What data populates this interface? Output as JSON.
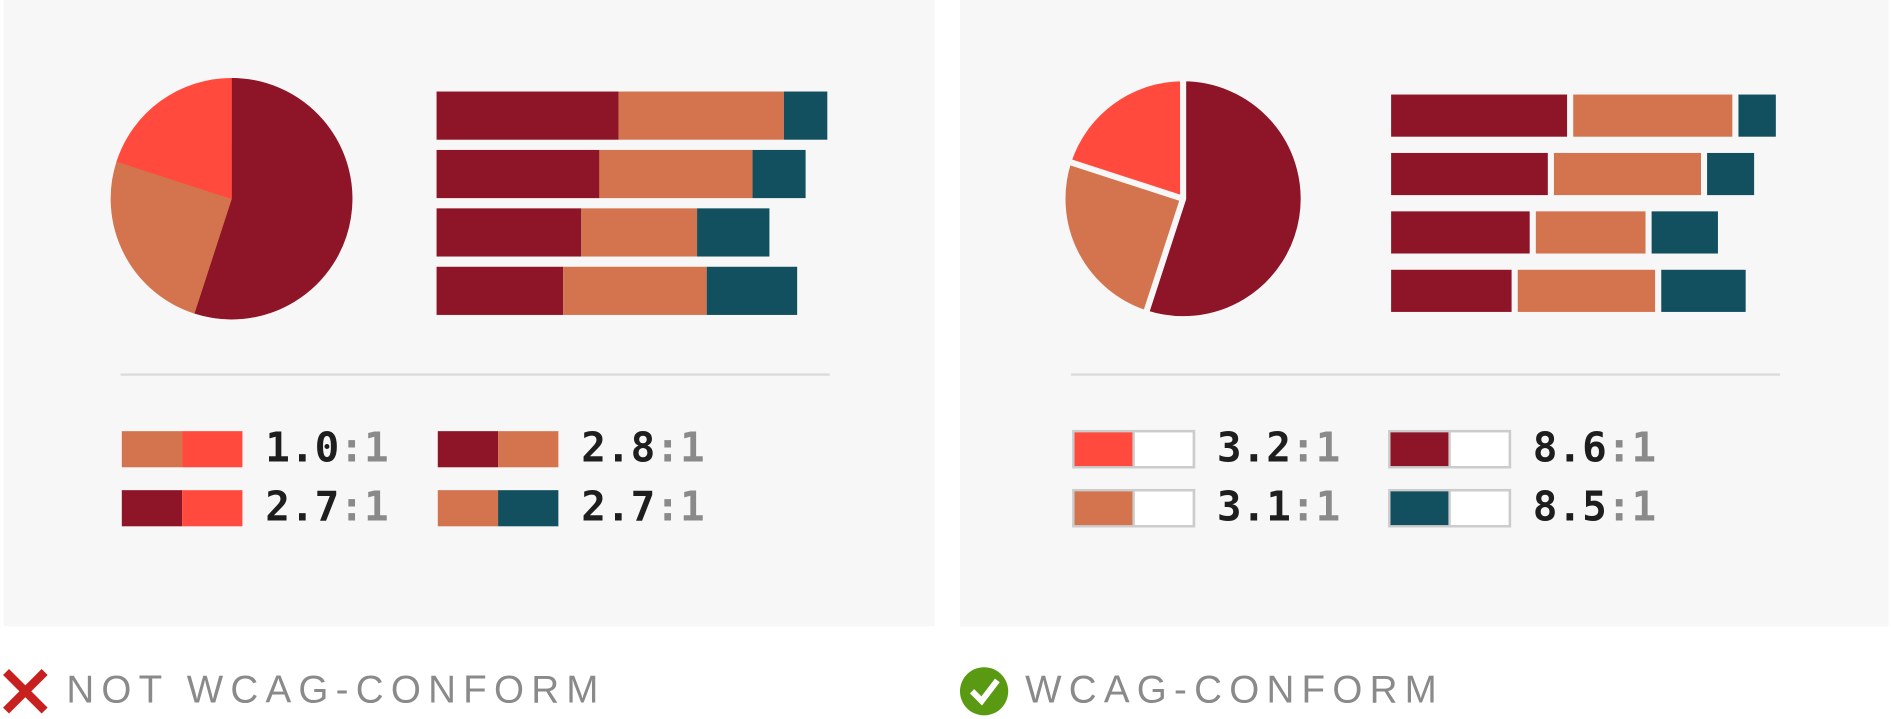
{
  "panels": [
    {
      "caption": "NOT WCAG-CONFORM",
      "icon": "cross",
      "separators": false,
      "pie": {
        "values": [
          55,
          25,
          20
        ],
        "colors": [
          "#8e1528",
          "#d4744f",
          "#ff4a3d"
        ]
      },
      "bar_colors": [
        "#8e1528",
        "#d4744f",
        "#12505f"
      ],
      "bars": [
        [
          151,
          137,
          36
        ],
        [
          135,
          127,
          44
        ],
        [
          120,
          96,
          60
        ],
        [
          105,
          119,
          75
        ]
      ],
      "ratios": [
        {
          "value": "1.0",
          "suffix": ":1",
          "swatch": [
            "#d4744f",
            "#ff4a3d"
          ]
        },
        {
          "value": "2.8",
          "suffix": ":1",
          "swatch": [
            "#8e1528",
            "#d4744f"
          ]
        },
        {
          "value": "2.7",
          "suffix": ":1",
          "swatch": [
            "#8e1528",
            "#ff4a3d"
          ]
        },
        {
          "value": "2.7",
          "suffix": ":1",
          "swatch": [
            "#d4744f",
            "#12505f"
          ]
        }
      ]
    },
    {
      "caption": "WCAG-CONFORM",
      "icon": "check",
      "separators": true,
      "pie": {
        "values": [
          55,
          25,
          20
        ],
        "colors": [
          "#8e1528",
          "#d4744f",
          "#ff4a3d"
        ]
      },
      "bar_colors": [
        "#8e1528",
        "#d4744f",
        "#12505f"
      ],
      "bars": [
        [
          151,
          137,
          36
        ],
        [
          135,
          127,
          44
        ],
        [
          120,
          96,
          60
        ],
        [
          105,
          119,
          75
        ]
      ],
      "ratios": [
        {
          "value": "3.2",
          "suffix": ":1",
          "swatch": [
            "#ff4a3d",
            "#ffffff"
          ]
        },
        {
          "value": "8.6",
          "suffix": ":1",
          "swatch": [
            "#8e1528",
            "#ffffff"
          ]
        },
        {
          "value": "3.1",
          "suffix": ":1",
          "swatch": [
            "#d4744f",
            "#ffffff"
          ]
        },
        {
          "value": "8.5",
          "suffix": ":1",
          "swatch": [
            "#12505f",
            "#ffffff"
          ]
        }
      ]
    }
  ]
}
